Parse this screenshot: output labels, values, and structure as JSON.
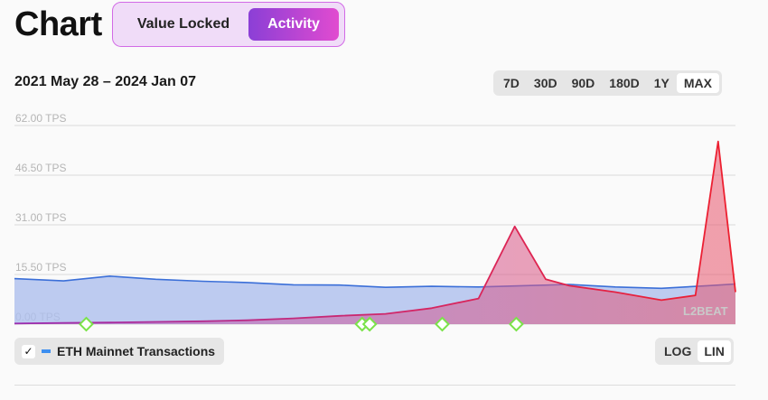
{
  "header": {
    "title": "Chart",
    "tabs": [
      {
        "label": "Value Locked",
        "active": false
      },
      {
        "label": "Activity",
        "active": true
      }
    ]
  },
  "date_range": "2021 May 28 – 2024 Jan 07",
  "ranges": [
    {
      "label": "7D",
      "active": false
    },
    {
      "label": "30D",
      "active": false
    },
    {
      "label": "90D",
      "active": false
    },
    {
      "label": "180D",
      "active": false
    },
    {
      "label": "1Y",
      "active": false
    },
    {
      "label": "MAX",
      "active": true
    }
  ],
  "legend": {
    "label": "ETH Mainnet Transactions",
    "checked": true,
    "color": "#3d8ff0"
  },
  "scale": [
    {
      "label": "LOG",
      "active": false
    },
    {
      "label": "LIN",
      "active": true
    }
  ],
  "watermark": "L2BEAT",
  "colors": {
    "eth_line": "#3b6fd8",
    "eth_fill": "#aebfee",
    "l2_line_start": "#9b2fb0",
    "l2_line_end": "#ee1f2e",
    "milestone": "#7be34a",
    "accent_gradient": [
      "#8b3fd6",
      "#e14bd0"
    ]
  },
  "chart_data": {
    "type": "area",
    "x_range": [
      "2021-05-28",
      "2024-01-07"
    ],
    "y_unit": "TPS",
    "ylim": [
      0,
      62
    ],
    "yticks": [
      "62.00 TPS",
      "46.50 TPS",
      "31.00 TPS",
      "15.50 TPS",
      "0.00 TPS"
    ],
    "ytick_values": [
      62,
      46.5,
      31,
      15.5,
      0
    ],
    "grid": true,
    "series": [
      {
        "name": "ETH Mainnet Transactions",
        "x": [
          "2021-05-28",
          "2021-08-01",
          "2021-10-01",
          "2021-12-01",
          "2022-02-01",
          "2022-04-01",
          "2022-06-01",
          "2022-08-01",
          "2022-10-01",
          "2022-12-01",
          "2023-02-01",
          "2023-04-01",
          "2023-06-01",
          "2023-08-01",
          "2023-10-01",
          "2023-12-01",
          "2024-01-07"
        ],
        "values": [
          14.2,
          13.5,
          15.0,
          14.0,
          13.4,
          13.0,
          12.3,
          12.2,
          11.5,
          11.8,
          11.6,
          12.0,
          12.4,
          11.6,
          11.2,
          12.0,
          12.5
        ]
      },
      {
        "x": [
          "2021-05-28",
          "2021-08-01",
          "2021-10-01",
          "2021-12-01",
          "2022-02-01",
          "2022-04-01",
          "2022-06-01",
          "2022-08-01",
          "2022-10-01",
          "2022-12-01",
          "2023-02-01",
          "2023-03-21",
          "2023-05-01",
          "2023-06-01",
          "2023-08-01",
          "2023-10-01",
          "2023-11-15",
          "2023-12-15",
          "2024-01-07"
        ],
        "values": [
          0.2,
          0.4,
          0.5,
          0.7,
          0.9,
          1.2,
          1.8,
          2.6,
          3.2,
          5.0,
          8.0,
          30.5,
          14.0,
          12.0,
          10.0,
          7.5,
          9.0,
          57.0,
          10.0
        ]
      }
    ],
    "milestones": [
      "2021-08-31",
      "2022-08-31",
      "2022-09-10",
      "2022-12-15",
      "2023-03-23"
    ]
  }
}
